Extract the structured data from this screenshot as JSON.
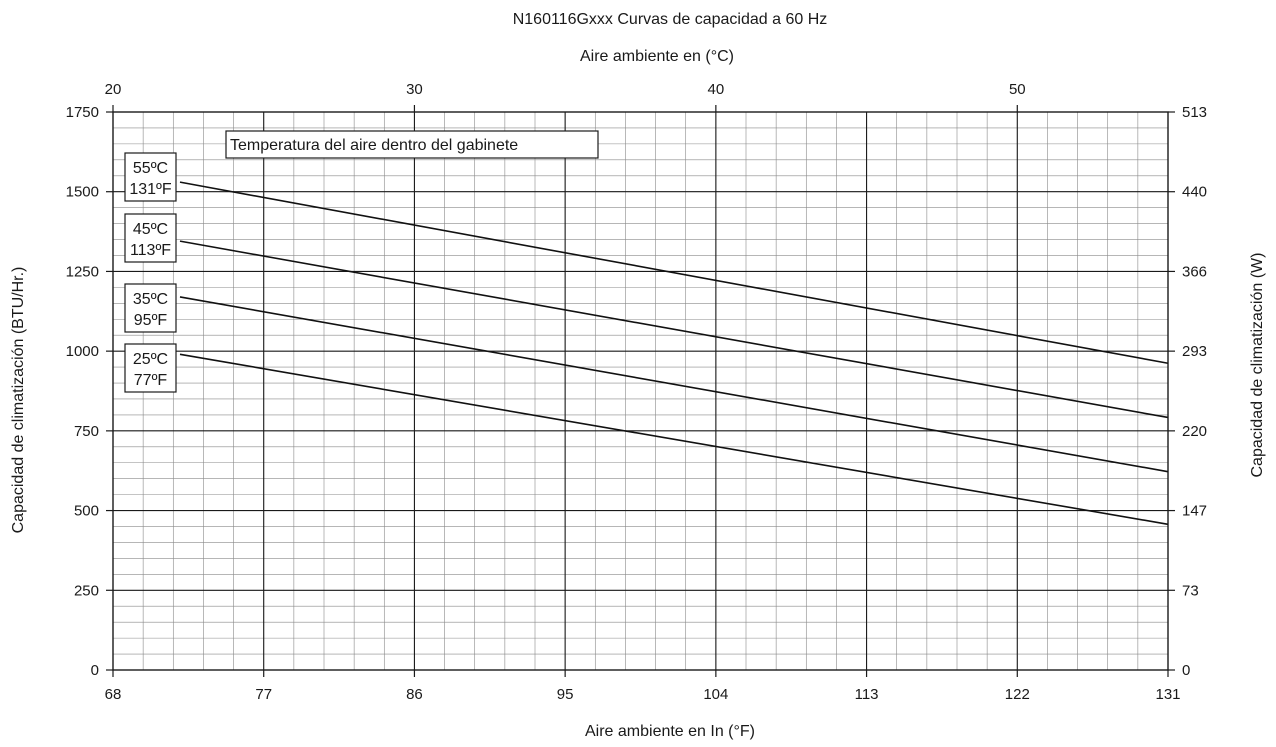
{
  "chart_data": {
    "type": "line",
    "title": "N160116Gxxx Curvas de capacidad a 60 Hz",
    "xlabel": "Aire ambiente en In (°F)",
    "x_top_label": "Aire ambiente en (°C)",
    "ylabel": "Capacidad de climatización (BTU/Hr.)",
    "y_right_label": "Capacidad de climatización (W)",
    "xlim": [
      68,
      131
    ],
    "ylim": [
      0,
      1750
    ],
    "x_ticks": [
      "68",
      "77",
      "86",
      "95",
      "104",
      "113",
      "122",
      "131"
    ],
    "x_top_ticks": [
      "20",
      "30",
      "40",
      "50"
    ],
    "y_ticks": [
      "0",
      "250",
      "500",
      "750",
      "1000",
      "1250",
      "1500",
      "1750"
    ],
    "y_right_ticks": [
      "0",
      "73",
      "147",
      "220",
      "293",
      "366",
      "440",
      "513"
    ],
    "grid": true,
    "legend_title": "Temperatura del aire dentro del gabinete",
    "series": [
      {
        "name": "55ºC 131ºF",
        "label_c": "55ºC",
        "label_f": "131ºF",
        "x": [
          72,
          131
        ],
        "y": [
          1530,
          962
        ]
      },
      {
        "name": "45ºC 113ºF",
        "label_c": "45ºC",
        "label_f": "113ºF",
        "x": [
          72,
          131
        ],
        "y": [
          1345,
          792
        ]
      },
      {
        "name": "35ºC 95ºF",
        "label_c": "35ºC",
        "label_f": "95ºF",
        "x": [
          72,
          131
        ],
        "y": [
          1170,
          622
        ]
      },
      {
        "name": "25ºC 77ºF",
        "label_c": "25ºC",
        "label_f": "77ºF",
        "x": [
          72,
          131
        ],
        "y": [
          990,
          457
        ]
      }
    ]
  }
}
